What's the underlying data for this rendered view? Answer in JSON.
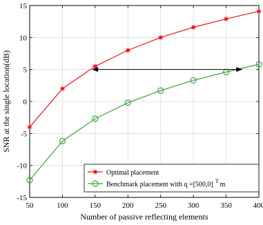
{
  "chart_data": {
    "type": "line",
    "xlabel": "Number of passive reflecting elements",
    "ylabel": "SNR at the single location(dB)",
    "xlim": [
      50,
      400
    ],
    "ylim": [
      -15,
      15
    ],
    "xticks": [
      50,
      100,
      150,
      200,
      250,
      300,
      350,
      400
    ],
    "yticks": [
      -15,
      -10,
      -5,
      0,
      5,
      10,
      15
    ],
    "grid": true,
    "legend_position": "bottom-right",
    "x": [
      50,
      100,
      150,
      200,
      250,
      300,
      350,
      400
    ],
    "series": [
      {
        "name": "Optimal placement",
        "color": "#e8141c",
        "marker": "asterisk",
        "values": [
          -4.0,
          2.0,
          5.5,
          8.0,
          10.0,
          11.6,
          12.9,
          14.1
        ]
      },
      {
        "name": "Benchmark placement with q =[500,0]",
        "name_superscript": "T",
        "name_suffix": "m",
        "color": "#3aa43a",
        "marker": "circle",
        "values": [
          -12.3,
          -6.2,
          -2.7,
          -0.2,
          1.7,
          3.3,
          4.6,
          5.8
        ]
      }
    ],
    "annotation": {
      "type": "double-arrow",
      "y": 5.0,
      "x_from": 145,
      "x_to": 375
    }
  }
}
